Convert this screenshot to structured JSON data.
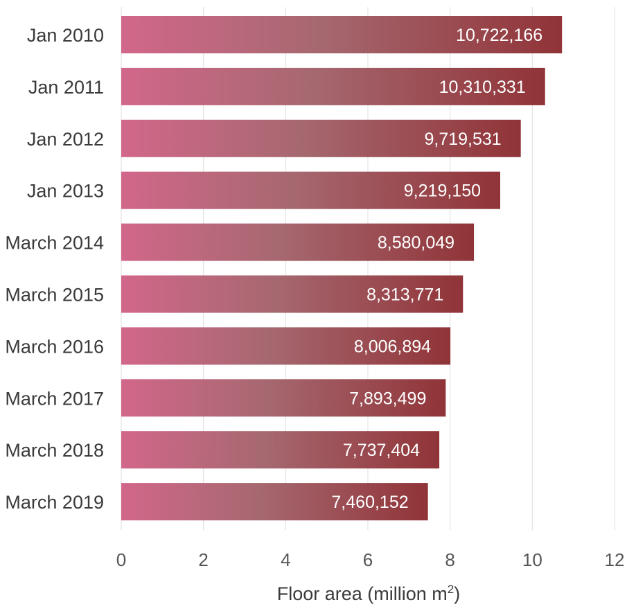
{
  "chart_data": {
    "type": "bar",
    "orientation": "horizontal",
    "categories": [
      "Jan 2010",
      "Jan 2011",
      "Jan 2012",
      "Jan 2013",
      "March 2014",
      "March 2015",
      "March 2016",
      "March 2017",
      "March 2018",
      "March 2019"
    ],
    "values": [
      10722166,
      10310331,
      9719531,
      9219150,
      8580049,
      8313771,
      8006894,
      7893499,
      7737404,
      7460152
    ],
    "data_labels": [
      "10,722,166",
      "10,310,331",
      "9,719,531",
      "9,219,150",
      "8,580,049",
      "8,313,771",
      "8,006,894",
      "7,893,499",
      "7,737,404",
      "7,460,152"
    ],
    "xlabel_main": "Floor area (million m",
    "xlabel_sup": "2",
    "xlabel_end": ")",
    "xlim": [
      0,
      12
    ],
    "x_ticks": [
      0,
      2,
      4,
      6,
      8,
      10,
      12
    ],
    "x_tick_labels": [
      "0",
      "2",
      "4",
      "6",
      "8",
      "10",
      "12"
    ],
    "value_unit_divisor": 1000000,
    "grid": true,
    "colors": {
      "bar_start": "#d2678a",
      "bar_mid": "#a66870",
      "bar_end": "#903438",
      "grid": "#dddddd"
    }
  }
}
